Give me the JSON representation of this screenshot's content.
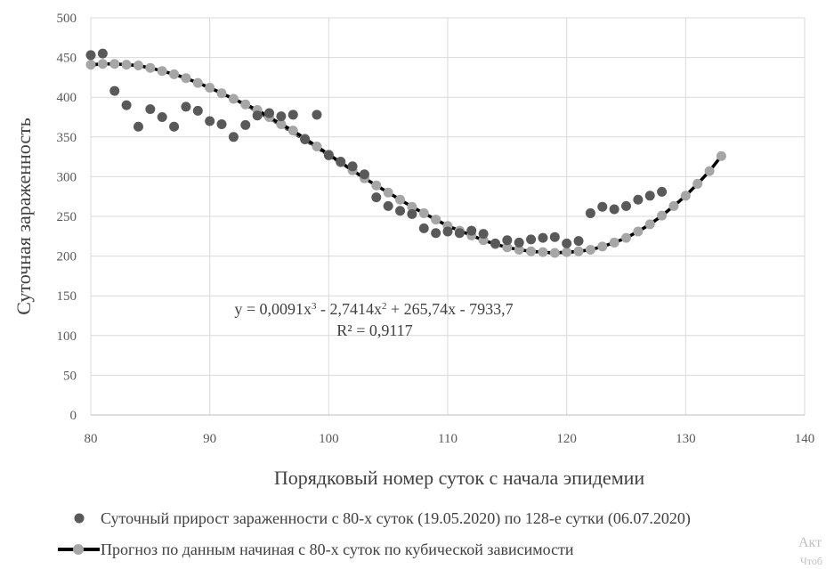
{
  "chart_data": {
    "type": "scatter",
    "xlabel": "Порядковый номер суток с начала эпидемии",
    "ylabel": "Суточная зараженность",
    "xlim": [
      80,
      140
    ],
    "ylim": [
      0,
      500
    ],
    "x_ticks": [
      "80",
      "90",
      "100",
      "110",
      "120",
      "130",
      "140"
    ],
    "y_ticks": [
      "0",
      "50",
      "100",
      "150",
      "200",
      "250",
      "300",
      "350",
      "400",
      "450",
      "500"
    ],
    "grid": "both",
    "legend_position": "bottom",
    "series": [
      {
        "name": "Суточный прирост зараженности с 80-х суток (19.05.2020) по 128-е сутки (06.07.2020)",
        "kind": "scatter",
        "color": "#595959",
        "x": [
          80,
          81,
          82,
          83,
          84,
          85,
          86,
          87,
          88,
          89,
          90,
          91,
          92,
          93,
          94,
          95,
          96,
          97,
          98,
          99,
          100,
          101,
          102,
          103,
          104,
          105,
          106,
          107,
          108,
          109,
          110,
          111,
          112,
          113,
          114,
          115,
          116,
          117,
          118,
          119,
          120,
          121,
          122,
          123,
          124,
          125,
          126,
          127,
          128
        ],
        "y": [
          453,
          455,
          408,
          390,
          363,
          385,
          375,
          363,
          388,
          383,
          370,
          366,
          350,
          365,
          377,
          380,
          376,
          378,
          347,
          378,
          327,
          319,
          313,
          303,
          274,
          263,
          257,
          253,
          235,
          229,
          231,
          229,
          232,
          228,
          216,
          220,
          217,
          221,
          223,
          224,
          216,
          219,
          254,
          262,
          259,
          263,
          271,
          276,
          281
        ]
      },
      {
        "name": "Прогноз по данным начиная с 80-х суток по кубической зависимости",
        "kind": "line-markers",
        "color": "#000000",
        "marker_color": "#a6a6a6",
        "x": [
          80,
          81,
          82,
          83,
          84,
          85,
          86,
          87,
          88,
          89,
          90,
          91,
          92,
          93,
          94,
          95,
          96,
          97,
          98,
          99,
          100,
          101,
          102,
          103,
          104,
          105,
          106,
          107,
          108,
          109,
          110,
          111,
          112,
          113,
          114,
          115,
          116,
          117,
          118,
          119,
          120,
          121,
          122,
          123,
          124,
          125,
          126,
          127,
          128,
          129,
          130,
          131,
          132,
          133
        ],
        "y": [
          441,
          442,
          442,
          441,
          440,
          437,
          433,
          429,
          424,
          418,
          412,
          405,
          398,
          391,
          384,
          375,
          366,
          358,
          348,
          338,
          328,
          318,
          308,
          298,
          289,
          280,
          271,
          262,
          254,
          246,
          238,
          232,
          226,
          220,
          215,
          211,
          208,
          206,
          205,
          204,
          205,
          206,
          208,
          212,
          217,
          223,
          231,
          240,
          251,
          263,
          276,
          291,
          307,
          326
        ]
      },
      {
        "name": "",
        "kind": "trendline",
        "style": "dotted",
        "color": "#595959",
        "equation": "y = 0,0091x³ - 2,7414x² + 265,74x - 7933,7",
        "coefficients": [
          0.0091,
          -2.7414,
          265.74,
          -7933.7
        ],
        "x_range": [
          80,
          128
        ]
      }
    ],
    "annotations": {
      "equation": "y = 0,0091x³ - 2,7414x² + 265,74x - 7933,7",
      "r_squared": "R² = 0,9117"
    }
  },
  "watermark": {
    "line1": "Акт",
    "line2": "Чтоб"
  }
}
